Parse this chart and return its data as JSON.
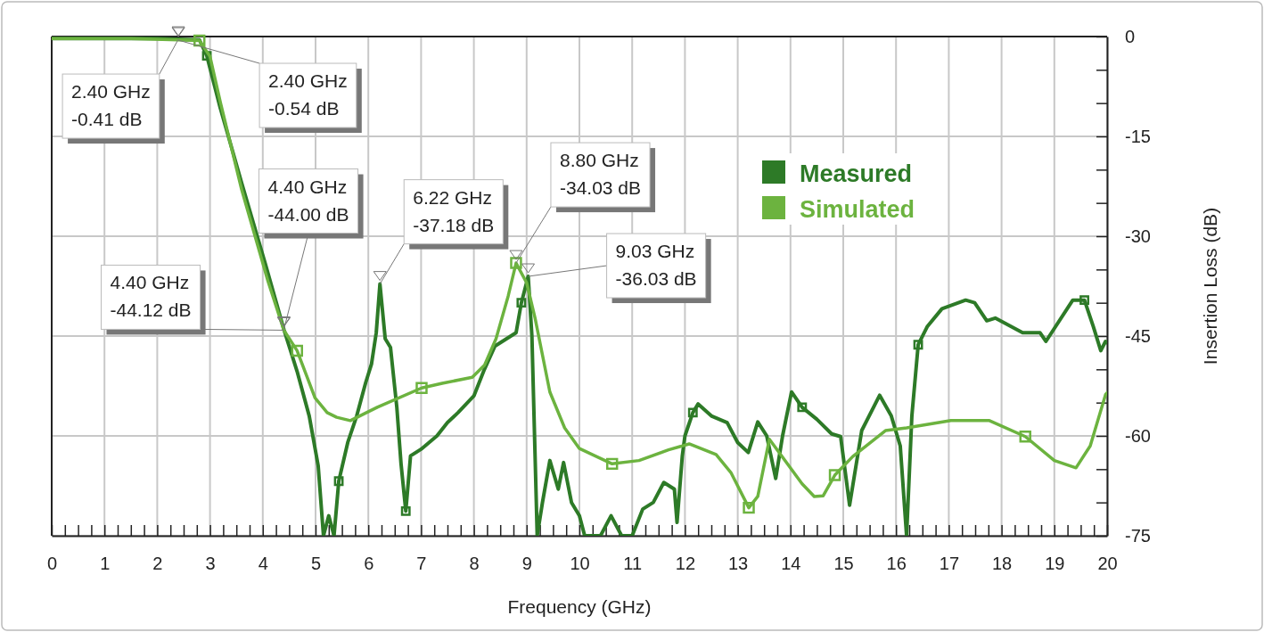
{
  "chart_data": {
    "type": "line",
    "xlabel": "Frequency (GHz)",
    "ylabel": "Insertion Loss (dB)",
    "xlim": [
      0,
      20
    ],
    "ylim": [
      -75,
      0
    ],
    "xticks": [
      0,
      {
        "value": 0.25,
        "label": null
      },
      {
        "value": 0.5,
        "label": null
      },
      {
        "value": 0.75,
        "label": null
      },
      1,
      {
        "value": 1.25,
        "label": null
      },
      {
        "value": 1.5,
        "label": null
      },
      {
        "value": 1.75,
        "label": null
      },
      2,
      {
        "value": 2.25,
        "label": null
      },
      {
        "value": 2.5,
        "label": null
      },
      {
        "value": 2.75,
        "label": null
      },
      3,
      {
        "value": 3.25,
        "label": null
      },
      {
        "value": 3.5,
        "label": null
      },
      {
        "value": 3.75,
        "label": null
      },
      4,
      {
        "value": 4.25,
        "label": null
      },
      {
        "value": 4.5,
        "label": null
      },
      {
        "value": 4.75,
        "label": null
      },
      5,
      {
        "value": 5.25,
        "label": null
      },
      {
        "value": 5.5,
        "label": null
      },
      {
        "value": 5.75,
        "label": null
      },
      6,
      {
        "value": 6.25,
        "label": null
      },
      {
        "value": 6.5,
        "label": null
      },
      {
        "value": 6.75,
        "label": null
      },
      7,
      {
        "value": 7.25,
        "label": null
      },
      {
        "value": 7.5,
        "label": null
      },
      {
        "value": 7.75,
        "label": null
      },
      8,
      {
        "value": 8.25,
        "label": null
      },
      {
        "value": 8.5,
        "label": null
      },
      {
        "value": 8.75,
        "label": null
      },
      9,
      {
        "value": 9.25,
        "label": null
      },
      {
        "value": 9.5,
        "label": null
      },
      {
        "value": 9.75,
        "label": null
      },
      10,
      {
        "value": 10.25,
        "label": null
      },
      {
        "value": 10.5,
        "label": null
      },
      {
        "value": 10.75,
        "label": null
      },
      11,
      {
        "value": 11.25,
        "label": null
      },
      {
        "value": 11.5,
        "label": null
      },
      {
        "value": 11.75,
        "label": null
      },
      12,
      {
        "value": 12.25,
        "label": null
      },
      {
        "value": 12.5,
        "label": null
      },
      {
        "value": 12.75,
        "label": null
      },
      13,
      {
        "value": 13.25,
        "label": null
      },
      {
        "value": 13.5,
        "label": null
      },
      {
        "value": 13.75,
        "label": null
      },
      14,
      {
        "value": 14.25,
        "label": null
      },
      {
        "value": 14.5,
        "label": null
      },
      {
        "value": 14.75,
        "label": null
      },
      15,
      {
        "value": 15.25,
        "label": null
      },
      {
        "value": 15.5,
        "label": null
      },
      {
        "value": 15.75,
        "label": null
      },
      16,
      {
        "value": 16.25,
        "label": null
      },
      {
        "value": 16.5,
        "label": null
      },
      {
        "value": 16.75,
        "label": null
      },
      17,
      {
        "value": 17.25,
        "label": null
      },
      {
        "value": 17.5,
        "label": null
      },
      {
        "value": 17.75,
        "label": null
      },
      18,
      {
        "value": 18.25,
        "label": null
      },
      {
        "value": 18.5,
        "label": null
      },
      {
        "value": 18.75,
        "label": null
      },
      19,
      {
        "value": 19.25,
        "label": null
      },
      {
        "value": 19.5,
        "label": null
      },
      {
        "value": 19.75,
        "label": null
      },
      20
    ],
    "yticks": [
      0,
      {
        "value": -5,
        "label": null
      },
      {
        "value": -10,
        "label": null
      },
      -15,
      {
        "value": -20,
        "label": null
      },
      {
        "value": -25,
        "label": null
      },
      -30,
      {
        "value": -35,
        "label": null
      },
      {
        "value": -40,
        "label": null
      },
      -45,
      {
        "value": -50,
        "label": null
      },
      {
        "value": -55,
        "label": null
      },
      -60,
      {
        "value": -65,
        "label": null
      },
      {
        "value": -70,
        "label": null
      },
      -75
    ],
    "grid": true,
    "legend": "top right",
    "line_style": "solid",
    "series": [
      {
        "name": "Measured",
        "color": "#2d7a27",
        "x": [
          0,
          1.0,
          2.0,
          2.4,
          2.8,
          2.94,
          3.19,
          3.6,
          4.05,
          4.4,
          4.65,
          4.88,
          5.05,
          5.15,
          5.25,
          5.35,
          5.44,
          5.61,
          5.78,
          5.95,
          6.06,
          6.15,
          6.22,
          6.32,
          6.42,
          6.54,
          6.62,
          6.71,
          6.8,
          7.0,
          7.3,
          7.5,
          7.7,
          8.0,
          8.2,
          8.4,
          8.6,
          8.8,
          8.9,
          9.03,
          9.1,
          9.2,
          9.3,
          9.44,
          9.6,
          9.7,
          9.85,
          10.0,
          10.1,
          10.4,
          10.6,
          10.8,
          11.0,
          11.2,
          11.4,
          11.6,
          11.8,
          11.85,
          11.95,
          12.0,
          12.15,
          12.25,
          12.5,
          12.8,
          13.0,
          13.2,
          13.38,
          13.55,
          13.72,
          13.85,
          14.02,
          14.22,
          14.5,
          14.78,
          14.95,
          15.12,
          15.35,
          15.69,
          15.91,
          16.08,
          16.2,
          16.3,
          16.42,
          16.59,
          16.87,
          17.32,
          17.49,
          17.72,
          17.88,
          18.4,
          18.73,
          18.84,
          19.35,
          19.57,
          19.74,
          19.88,
          19.97,
          20
        ],
        "values": [
          -0.3,
          -0.3,
          -0.3,
          -0.4,
          -0.5,
          -2.9,
          -10.6,
          -22,
          -34.2,
          -44,
          -50.3,
          -57,
          -64.5,
          -75,
          -72,
          -75,
          -66.8,
          -61,
          -57,
          -52,
          -49.2,
          -44.5,
          -37.18,
          -45.4,
          -46.7,
          -55.7,
          -64.2,
          -71.3,
          -63,
          -62,
          -60,
          -58,
          -56.5,
          -54,
          -50,
          -46.5,
          -45.5,
          -44.5,
          -40,
          -36.03,
          -45,
          -75,
          -70,
          -63.7,
          -68,
          -64,
          -70,
          -72,
          -75,
          -75,
          -72,
          -75,
          -75,
          -71,
          -70,
          -67,
          -68,
          -73,
          -63,
          -60,
          -56.5,
          -55.2,
          -57,
          -58,
          -61,
          -62.5,
          -57.9,
          -60,
          -66.4,
          -60,
          -53.4,
          -55.7,
          -57.5,
          -59.7,
          -60.1,
          -70.4,
          -59.2,
          -53.9,
          -57,
          -61.5,
          -75,
          -57,
          -46.3,
          -43.6,
          -40.9,
          -39.6,
          -40,
          -42.7,
          -42.3,
          -44.5,
          -44.5,
          -45.8,
          -39.6,
          -39.6,
          -43.6,
          -47.2,
          -45.8,
          -46
        ]
      },
      {
        "name": "Simulated",
        "color": "#6cb33f",
        "x": [
          0,
          1.5,
          2.4,
          2.8,
          3.0,
          3.2,
          3.6,
          4.1,
          4.4,
          4.65,
          4.99,
          5.22,
          5.4,
          5.66,
          6.17,
          7.01,
          7.4,
          7.97,
          8.2,
          8.42,
          8.65,
          8.8,
          9.0,
          9.16,
          9.44,
          9.72,
          10.0,
          10.62,
          11.13,
          11.69,
          12.08,
          12.59,
          12.87,
          13.21,
          13.38,
          13.6,
          14.22,
          14.45,
          14.62,
          14.84,
          15.18,
          15.8,
          16.2,
          17.04,
          17.77,
          18.45,
          19.0,
          19.41,
          19.68,
          19.97,
          20
        ],
        "values": [
          -0.3,
          -0.3,
          -0.5,
          -0.6,
          -3,
          -10,
          -23,
          -36.8,
          -44.12,
          -47.2,
          -54.3,
          -56.5,
          -57.2,
          -57.7,
          -55.7,
          -52.8,
          -52.1,
          -51.2,
          -49.4,
          -45.4,
          -39,
          -34.03,
          -37,
          -42.3,
          -53.4,
          -58.8,
          -61.9,
          -64.2,
          -63.7,
          -62.1,
          -61.2,
          -62.8,
          -65.5,
          -70.8,
          -69.1,
          -60.5,
          -67.2,
          -69.1,
          -69,
          -65.9,
          -63.1,
          -59.2,
          -58.8,
          -57.7,
          -57.7,
          -60.1,
          -63.7,
          -64.8,
          -61.5,
          -53.8,
          -53.5
        ]
      }
    ],
    "annotations": [
      {
        "text": "2.40 GHz\n-0.41 dB",
        "x": 2.4,
        "y": -0.41
      },
      {
        "text": "2.40 GHz\n-0.54 dB",
        "x": 2.4,
        "y": -0.54
      },
      {
        "text": "4.40 GHz\n-44.00 dB",
        "x": 4.4,
        "y": -44.0
      },
      {
        "text": "4.40 GHz\n-44.12 dB",
        "x": 4.4,
        "y": -44.12
      },
      {
        "text": "6.22 GHz\n-37.18 dB",
        "x": 6.22,
        "y": -37.18
      },
      {
        "text": "8.80 GHz\n-34.03 dB",
        "x": 8.8,
        "y": -34.03
      },
      {
        "text": "9.03 GHz\n-36.03 dB",
        "x": 9.03,
        "y": -36.03
      }
    ]
  }
}
